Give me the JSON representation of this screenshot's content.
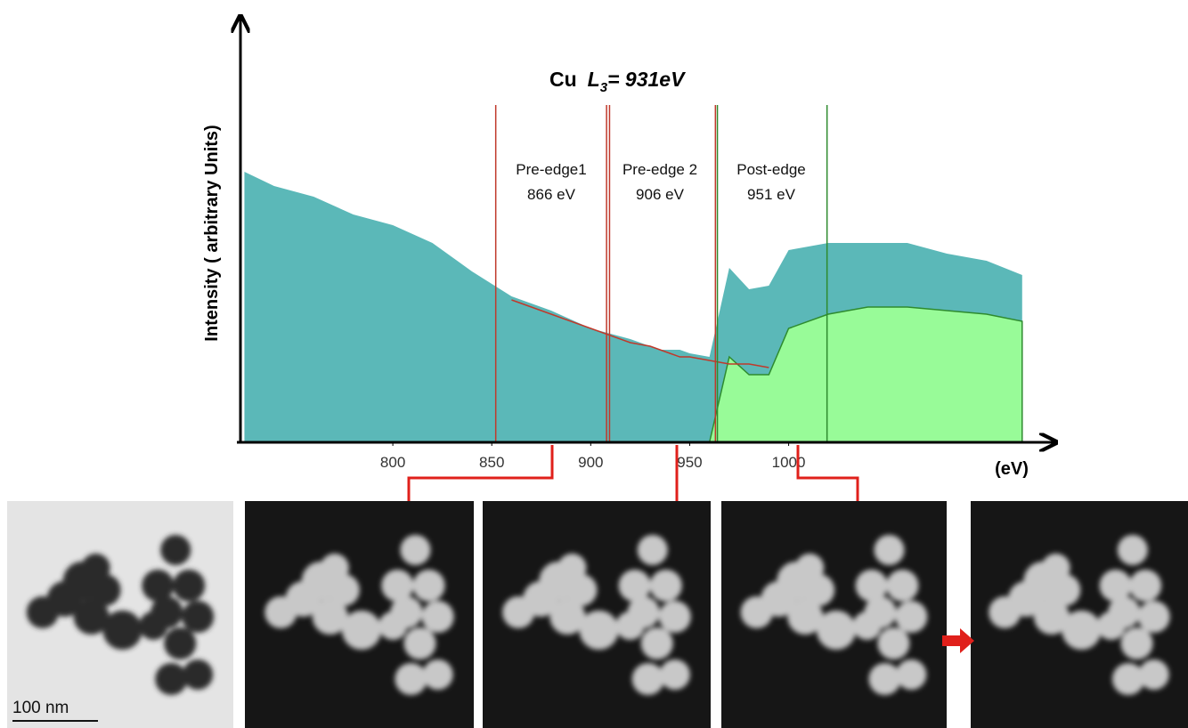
{
  "chart_data": {
    "type": "area",
    "title": {
      "element": "Cu",
      "symbol": "L",
      "subscript": "3",
      "equals": "= 931eV"
    },
    "y_label": "Intensity ( arbitrary Units)",
    "x_unit": "(eV)",
    "x": [
      725,
      740,
      760,
      780,
      800,
      820,
      840,
      860,
      880,
      900,
      920,
      930,
      935,
      940,
      945,
      950,
      960,
      970,
      980,
      990,
      1000,
      1020,
      1040,
      1060,
      1080,
      1100,
      1118
    ],
    "series": [
      {
        "style": "area",
        "color": "#5bb8b8",
        "values": [
          76,
          72,
          69,
          64,
          61,
          56,
          48,
          41,
          37,
          32,
          29,
          27,
          26,
          26,
          26,
          25,
          24,
          49,
          43,
          44,
          54,
          56,
          56,
          56,
          53,
          51,
          47
        ]
      },
      {
        "style": "area",
        "color": "#98fb98",
        "line_color": "#2e8b2e",
        "values": [
          null,
          null,
          null,
          null,
          null,
          null,
          null,
          null,
          null,
          null,
          null,
          null,
          null,
          null,
          null,
          null,
          0,
          24,
          19,
          19,
          32,
          36,
          38,
          38,
          37,
          36,
          34
        ]
      },
      {
        "style": "line",
        "color": "#c0392b",
        "values": [
          null,
          null,
          null,
          null,
          null,
          null,
          null,
          40,
          36,
          32,
          28,
          27,
          26,
          25,
          24,
          24,
          23,
          22,
          22,
          21,
          null,
          null,
          null,
          null,
          null,
          null,
          null
        ]
      }
    ],
    "xlim": [
      723,
      1119
    ],
    "ylim": [
      0,
      100
    ],
    "xticks": [
      800,
      850,
      900,
      950,
      1000
    ],
    "windows": [
      {
        "x": 852,
        "color": "#c0392b"
      },
      {
        "x": 908,
        "color": "#c0392b"
      },
      {
        "x": 909.5,
        "color": "#c0392b"
      },
      {
        "x": 963,
        "color": "#c0392b"
      },
      {
        "x": 964,
        "color": "#2e8b2e"
      },
      {
        "x": 1019.4,
        "color": "#2e8b2e"
      }
    ],
    "window_labels": [
      {
        "name": "Pre-edge1",
        "energy": "866 eV"
      },
      {
        "name": "Pre-edge 2",
        "energy": "906 eV"
      },
      {
        "name": "Post-edge",
        "energy": "951 eV"
      }
    ],
    "scale_bar": "100  nm"
  }
}
